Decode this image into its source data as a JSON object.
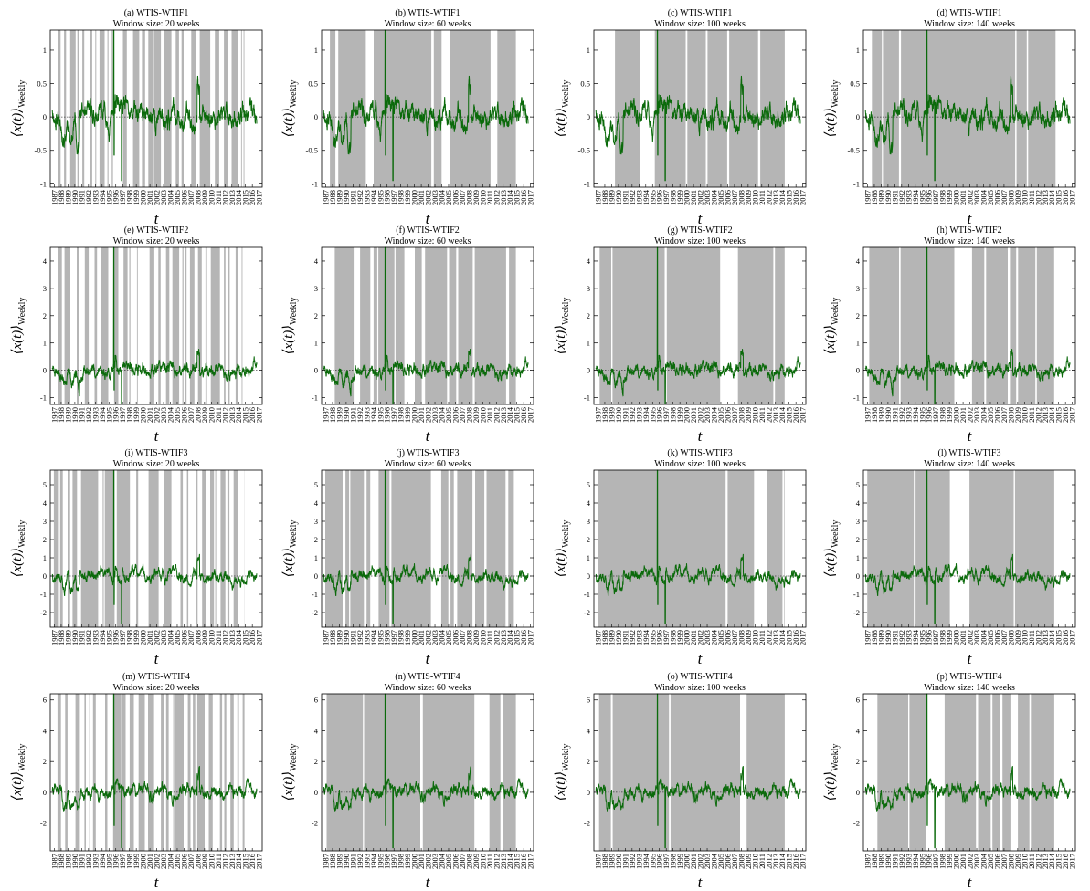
{
  "figure": {
    "line_color": "#0b6a0b",
    "shade_color": "#b5b5b5",
    "xlabel": "t",
    "ylabel_main": "⟨x(t)⟩",
    "ylabel_sub": "Weekly",
    "x_tick_labels": [
      "1987",
      "1988",
      "1989",
      "1990",
      "1991",
      "1992",
      "1993",
      "1994",
      "1995",
      "1996",
      "1997",
      "1998",
      "1999",
      "2000",
      "2001",
      "2002",
      "2003",
      "2004",
      "2005",
      "2006",
      "2007",
      "2008",
      "2009",
      "2010",
      "2011",
      "2012",
      "2013",
      "2014",
      "2015",
      "2016",
      "2017"
    ]
  },
  "chart_data": [
    {
      "type": "line",
      "panel": "a",
      "title": "(a) WTIS-WTIF1",
      "subtitle": "Window size: 20 weeks",
      "row": 0,
      "col": 0,
      "ylim": [
        -1.05,
        1.3
      ],
      "yticks": [
        -1,
        -0.5,
        0,
        0.5,
        1
      ],
      "spike": [
        1.3,
        -0.95
      ],
      "mag": 0.09,
      "seed": 11,
      "window": 20
    },
    {
      "type": "line",
      "panel": "b",
      "title": "(b) WTIS-WTIF1",
      "subtitle": "Window size: 60 weeks",
      "row": 0,
      "col": 1,
      "ylim": [
        -1.05,
        1.3
      ],
      "yticks": [
        -1,
        -0.5,
        0,
        0.5,
        1
      ],
      "spike": [
        1.3,
        -0.95
      ],
      "mag": 0.09,
      "seed": 11,
      "window": 60
    },
    {
      "type": "line",
      "panel": "c",
      "title": "(c) WTIS-WTIF1",
      "subtitle": "Window size: 100 weeks",
      "row": 0,
      "col": 2,
      "ylim": [
        -1.05,
        1.3
      ],
      "yticks": [
        -1,
        -0.5,
        0,
        0.5,
        1
      ],
      "spike": [
        1.3,
        -0.95
      ],
      "mag": 0.09,
      "seed": 11,
      "window": 100
    },
    {
      "type": "line",
      "panel": "d",
      "title": "(d) WTIS-WTIF1",
      "subtitle": "Window size: 140 weeks",
      "row": 0,
      "col": 3,
      "ylim": [
        -1.05,
        1.3
      ],
      "yticks": [
        -1,
        -0.5,
        0,
        0.5,
        1
      ],
      "spike": [
        1.3,
        -0.95
      ],
      "mag": 0.09,
      "seed": 11,
      "window": 140
    },
    {
      "type": "line",
      "panel": "e",
      "title": "(e) WTIS-WTIF2",
      "subtitle": "Window size: 20 weeks",
      "row": 1,
      "col": 0,
      "ylim": [
        -1.25,
        4.5
      ],
      "yticks": [
        -1,
        0,
        1,
        2,
        3,
        4
      ],
      "spike": [
        4.5,
        -1.2
      ],
      "mag": 0.13,
      "seed": 23,
      "window": 20
    },
    {
      "type": "line",
      "panel": "f",
      "title": "(f) WTIS-WTIF2",
      "subtitle": "Window size: 60 weeks",
      "row": 1,
      "col": 1,
      "ylim": [
        -1.25,
        4.5
      ],
      "yticks": [
        -1,
        0,
        1,
        2,
        3,
        4
      ],
      "spike": [
        4.5,
        -1.2
      ],
      "mag": 0.13,
      "seed": 23,
      "window": 60
    },
    {
      "type": "line",
      "panel": "g",
      "title": "(g) WTIS-WTIF2",
      "subtitle": "Window size: 100 weeks",
      "row": 1,
      "col": 2,
      "ylim": [
        -1.25,
        4.5
      ],
      "yticks": [
        -1,
        0,
        1,
        2,
        3,
        4
      ],
      "spike": [
        4.5,
        -1.2
      ],
      "mag": 0.13,
      "seed": 23,
      "window": 100
    },
    {
      "type": "line",
      "panel": "h",
      "title": "(h) WTIS-WTIF2",
      "subtitle": "Window size: 140 weeks",
      "row": 1,
      "col": 3,
      "ylim": [
        -1.25,
        4.5
      ],
      "yticks": [
        -1,
        0,
        1,
        2,
        3,
        4
      ],
      "spike": [
        4.5,
        -1.2
      ],
      "mag": 0.13,
      "seed": 23,
      "window": 140
    },
    {
      "type": "line",
      "panel": "i",
      "title": "(i) WTIS-WTIF3",
      "subtitle": "Window size: 20 weeks",
      "row": 2,
      "col": 0,
      "ylim": [
        -2.8,
        5.8
      ],
      "yticks": [
        -2,
        -1,
        0,
        1,
        2,
        3,
        4,
        5
      ],
      "spike": [
        5.8,
        -2.6
      ],
      "mag": 0.18,
      "seed": 37,
      "window": 20
    },
    {
      "type": "line",
      "panel": "j",
      "title": "(j) WTIS-WTIF3",
      "subtitle": "Window size: 60 weeks",
      "row": 2,
      "col": 1,
      "ylim": [
        -2.8,
        5.8
      ],
      "yticks": [
        -2,
        -1,
        0,
        1,
        2,
        3,
        4,
        5
      ],
      "spike": [
        5.8,
        -2.6
      ],
      "mag": 0.18,
      "seed": 37,
      "window": 60
    },
    {
      "type": "line",
      "panel": "k",
      "title": "(k) WTIS-WTIF3",
      "subtitle": "Window size: 100 weeks",
      "row": 2,
      "col": 2,
      "ylim": [
        -2.8,
        5.8
      ],
      "yticks": [
        -2,
        -1,
        0,
        1,
        2,
        3,
        4,
        5
      ],
      "spike": [
        5.8,
        -2.6
      ],
      "mag": 0.18,
      "seed": 37,
      "window": 100
    },
    {
      "type": "line",
      "panel": "l",
      "title": "(l) WTIS-WTIF3",
      "subtitle": "Window size: 140 weeks",
      "row": 2,
      "col": 3,
      "ylim": [
        -2.8,
        5.8
      ],
      "yticks": [
        -2,
        -1,
        0,
        1,
        2,
        3,
        4,
        5
      ],
      "spike": [
        5.8,
        -2.6
      ],
      "mag": 0.18,
      "seed": 37,
      "window": 140
    },
    {
      "type": "line",
      "panel": "m",
      "title": "(m) WTIS-WTIF4",
      "subtitle": "Window size: 20 weeks",
      "row": 3,
      "col": 0,
      "ylim": [
        -3.8,
        6.4
      ],
      "yticks": [
        -2,
        0,
        2,
        4,
        6
      ],
      "spike": [
        6.4,
        -3.6
      ],
      "mag": 0.22,
      "seed": 41,
      "window": 20
    },
    {
      "type": "line",
      "panel": "n",
      "title": "(n) WTIS-WTIF4",
      "subtitle": "Window size: 60 weeks",
      "row": 3,
      "col": 1,
      "ylim": [
        -3.8,
        6.4
      ],
      "yticks": [
        -2,
        0,
        2,
        4,
        6
      ],
      "spike": [
        6.4,
        -3.6
      ],
      "mag": 0.22,
      "seed": 41,
      "window": 60
    },
    {
      "type": "line",
      "panel": "o",
      "title": "(o) WTIS-WTIF4",
      "subtitle": "Window size: 100 weeks",
      "row": 3,
      "col": 2,
      "ylim": [
        -3.8,
        6.4
      ],
      "yticks": [
        -2,
        0,
        2,
        4,
        6
      ],
      "spike": [
        6.4,
        -3.6
      ],
      "mag": 0.22,
      "seed": 41,
      "window": 100
    },
    {
      "type": "line",
      "panel": "p",
      "title": "(p) WTIS-WTIF4",
      "subtitle": "Window size: 140 weeks",
      "row": 3,
      "col": 3,
      "ylim": [
        -3.8,
        6.4
      ],
      "yticks": [
        -2,
        0,
        2,
        4,
        6
      ],
      "spike": [
        6.4,
        -3.6
      ],
      "mag": 0.22,
      "seed": 41,
      "window": 140
    }
  ]
}
